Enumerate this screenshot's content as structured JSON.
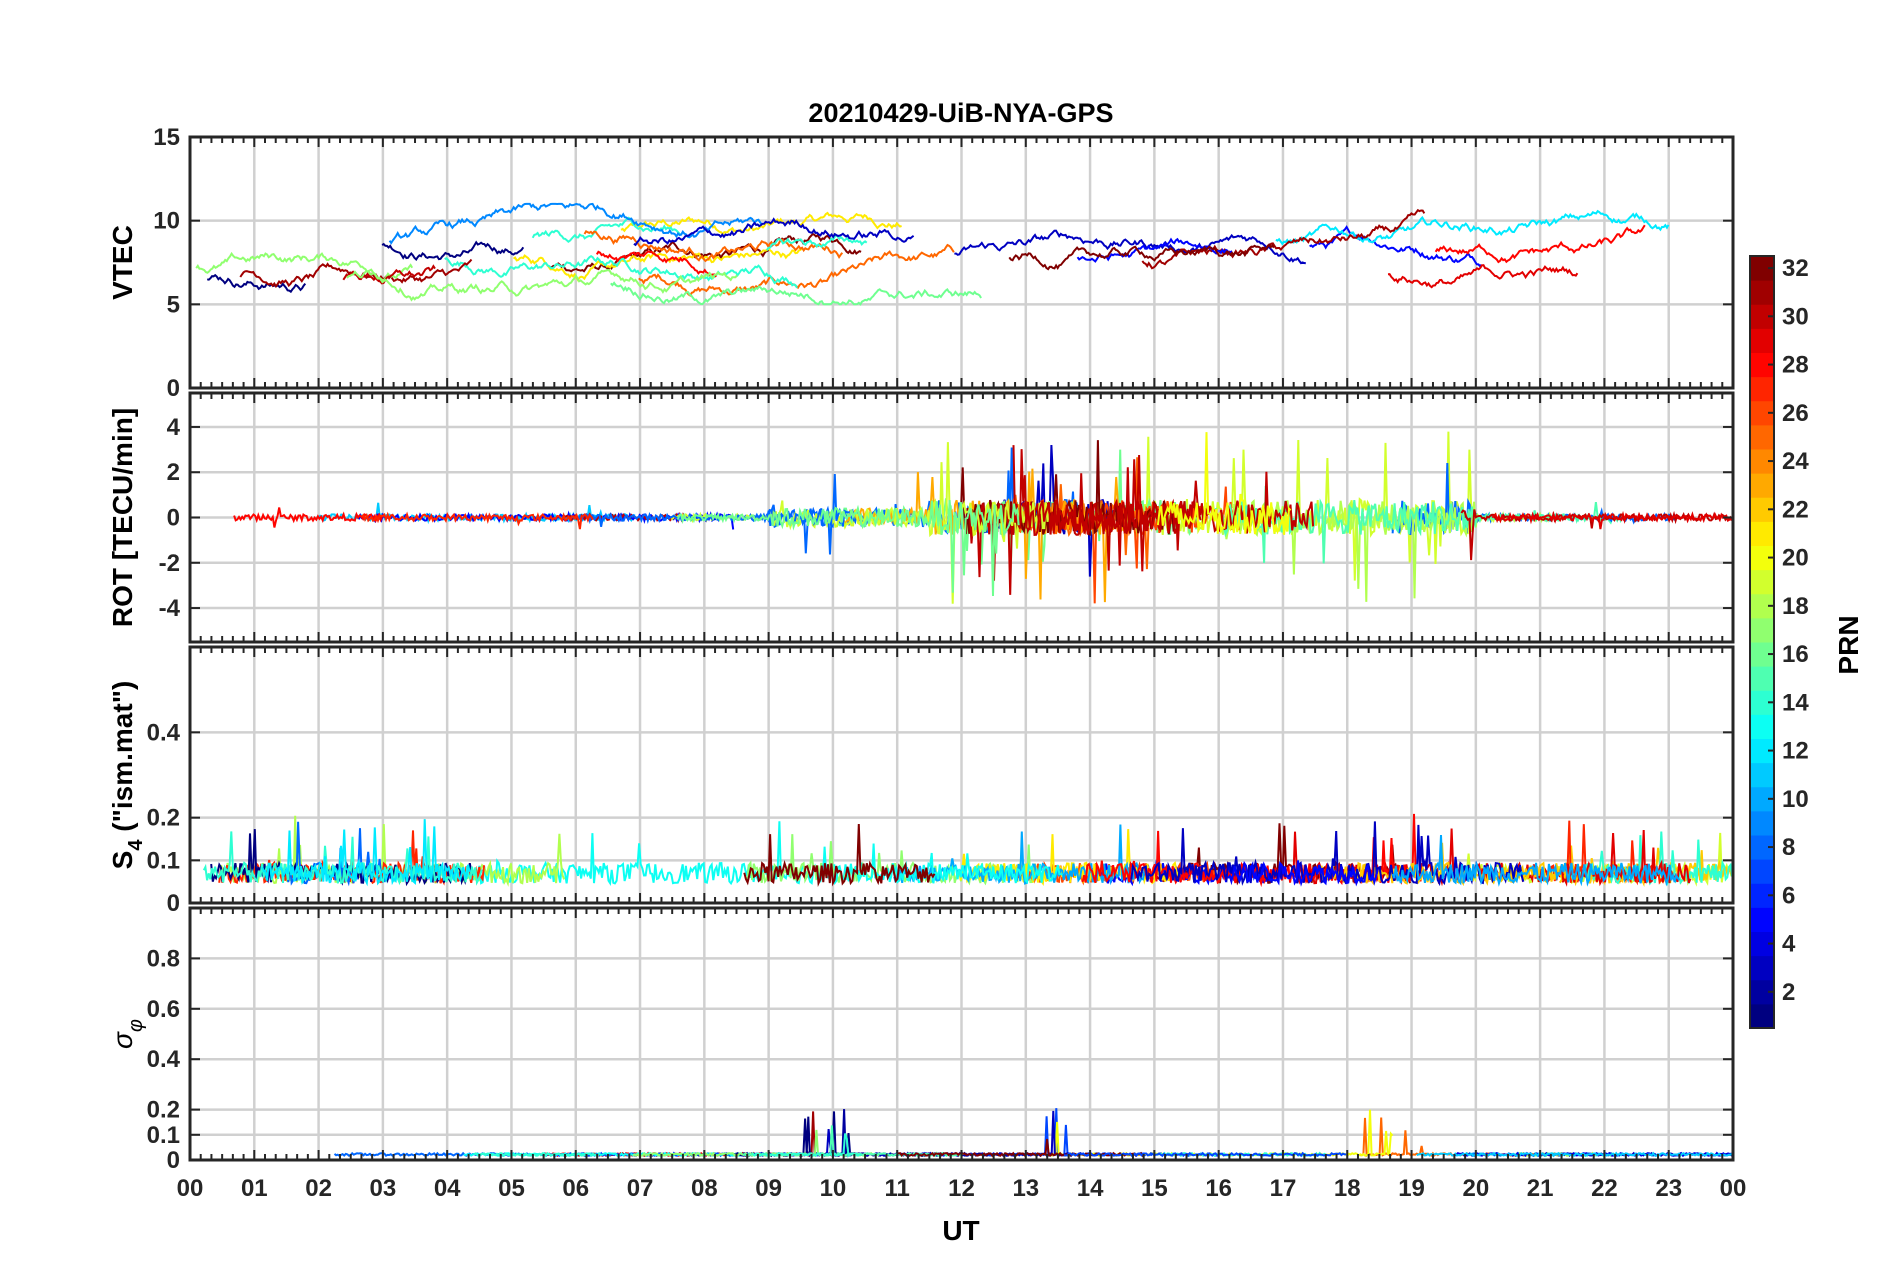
{
  "chart_data": [
    {
      "type": "line",
      "title": "20210429-UiB-NYA-GPS",
      "ylabel": "VTEC",
      "ylim": [
        0,
        15
      ],
      "yticks": [
        "0",
        "5",
        "10",
        "15"
      ],
      "xlim": [
        0,
        24
      ],
      "baseline": 7.8,
      "spread": 1.6,
      "series_note": "multiple PRN traces colored by colorbar"
    },
    {
      "type": "line",
      "ylabel": "ROT [TECU/min]",
      "ylim": [
        -5.5,
        5.5
      ],
      "yticks": [
        "-4",
        "-2",
        "0",
        "2",
        "4"
      ],
      "xlim": [
        0,
        24
      ],
      "baseline": 0,
      "spread": 0.35
    },
    {
      "type": "line",
      "ylabel_main": "S",
      "ylabel_sub": "4",
      "ylabel_rest": " (\"ism.mat\")",
      "ylim": [
        0,
        0.6
      ],
      "yticks": [
        "0",
        "0.1",
        "0.2",
        "0.4"
      ],
      "xlim": [
        0,
        24
      ],
      "baseline": 0.07,
      "spread": 0.03
    },
    {
      "type": "line",
      "ylabel_main": "σ",
      "ylabel_sub": "φ",
      "ylim": [
        0,
        1
      ],
      "yticks": [
        "0",
        "0.1",
        "0.2",
        "0.4",
        "0.6",
        "0.8"
      ],
      "xlim": [
        0,
        24
      ],
      "baseline": 0.02,
      "spread": 0.01
    }
  ],
  "xaxis": {
    "label": "UT",
    "ticklabels": [
      "00",
      "01",
      "02",
      "03",
      "04",
      "05",
      "06",
      "07",
      "08",
      "09",
      "10",
      "11",
      "12",
      "13",
      "14",
      "15",
      "16",
      "17",
      "18",
      "19",
      "20",
      "21",
      "22",
      "23",
      "00"
    ]
  },
  "colorbar": {
    "label": "PRN",
    "range": [
      1,
      32
    ],
    "ticks": [
      "2",
      "4",
      "6",
      "8",
      "10",
      "12",
      "14",
      "16",
      "18",
      "20",
      "22",
      "24",
      "26",
      "28",
      "30",
      "32"
    ],
    "colormap": "jet"
  }
}
